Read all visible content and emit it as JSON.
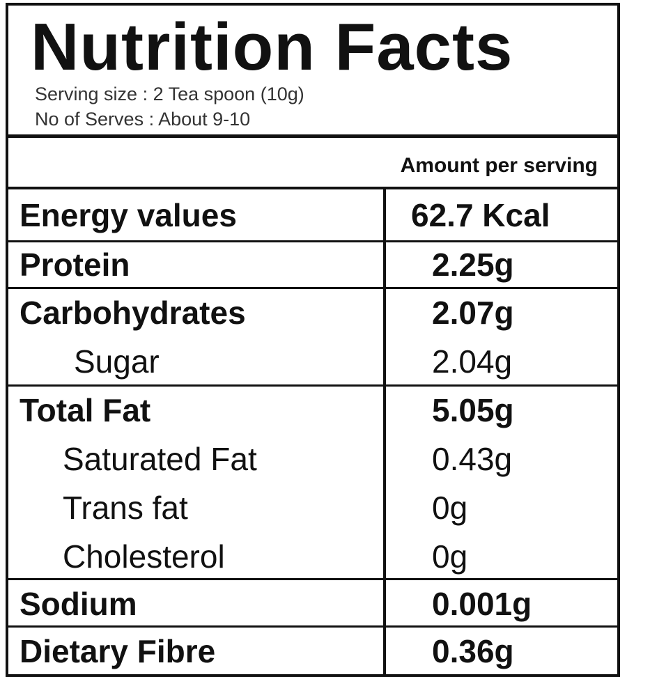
{
  "header": {
    "title": "Nutrition Facts",
    "serving_size": "Serving size : 2 Tea spoon (10g)",
    "servings": "No of Serves : About 9-10"
  },
  "table": {
    "column_header": "Amount per serving",
    "rows": [
      [
        "Energy values",
        "62.7 Kcal"
      ],
      [
        "Protein",
        "2.25g"
      ],
      [
        "Carbohydrates",
        "2.07g"
      ],
      [
        "Sugar",
        "2.04g"
      ],
      [
        "Total Fat",
        "5.05g"
      ],
      [
        "Saturated Fat",
        "0.43g"
      ],
      [
        "Trans fat",
        "0g"
      ],
      [
        "Cholesterol",
        "0g"
      ],
      [
        "Sodium",
        "0.001g"
      ],
      [
        "Dietary Fibre",
        "0.36g"
      ]
    ]
  }
}
